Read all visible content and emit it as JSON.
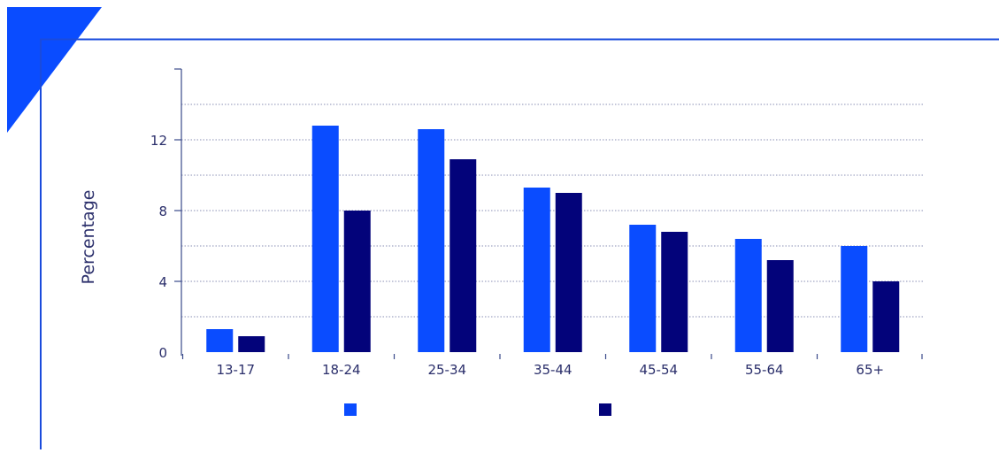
{
  "colors": {
    "accent": "#0a4cff",
    "frame": "#1a4bdc",
    "series_1": "#0a4cff",
    "series_2": "#03037a",
    "axis_text": "#2b2f6b",
    "grid": "#8a8fb5"
  },
  "chart_data": {
    "type": "bar",
    "title": "",
    "xlabel": "",
    "ylabel": "Percentage",
    "categories": [
      "13-17",
      "18-24",
      "25-34",
      "35-44",
      "45-54",
      "55-64",
      "65+"
    ],
    "series": [
      {
        "values": [
          1.3,
          12.8,
          12.6,
          9.3,
          7.2,
          6.4,
          6.0
        ]
      },
      {
        "values": [
          0.9,
          8.0,
          10.9,
          9.0,
          6.8,
          5.2,
          4.0
        ]
      }
    ],
    "ylim": [
      0,
      16
    ],
    "yticks": [
      0,
      4,
      8,
      12
    ],
    "grid": true,
    "legend": {
      "placement": "bottom",
      "entries": [
        "",
        ""
      ]
    }
  }
}
